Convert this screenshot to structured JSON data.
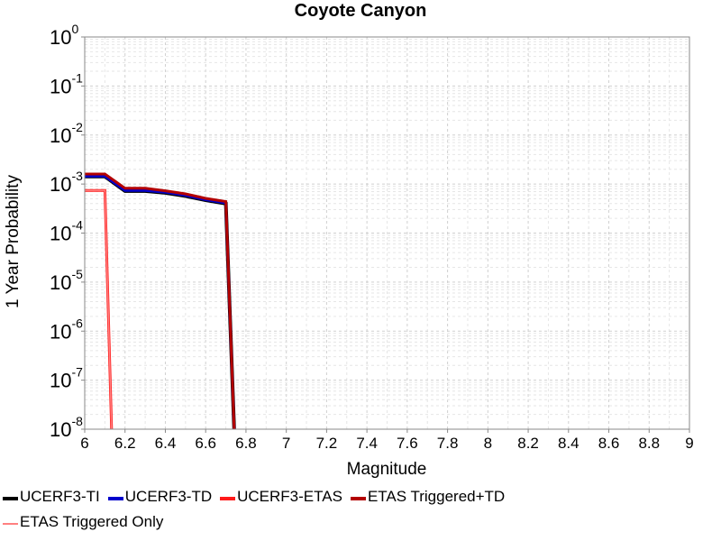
{
  "chart_data": {
    "type": "line",
    "title": "Coyote Canyon",
    "xlabel": "Magnitude",
    "ylabel": "1 Year Probability",
    "xlim": [
      6,
      9
    ],
    "ylim": [
      1e-08,
      1
    ],
    "yscale": "log",
    "xticks": [
      "6",
      "6.2",
      "6.4",
      "6.6",
      "6.8",
      "7",
      "7.2",
      "7.4",
      "7.6",
      "7.8",
      "8",
      "8.2",
      "8.4",
      "8.6",
      "8.8",
      "9"
    ],
    "yticks": [
      {
        "base": "10",
        "exp": "0",
        "value": 1
      },
      {
        "base": "10",
        "exp": "-1",
        "value": 0.1
      },
      {
        "base": "10",
        "exp": "-2",
        "value": 0.01
      },
      {
        "base": "10",
        "exp": "-3",
        "value": 0.001
      },
      {
        "base": "10",
        "exp": "-4",
        "value": 0.0001
      },
      {
        "base": "10",
        "exp": "-5",
        "value": 1e-05
      },
      {
        "base": "10",
        "exp": "-6",
        "value": 1e-06
      },
      {
        "base": "10",
        "exp": "-7",
        "value": 1e-07
      },
      {
        "base": "10",
        "exp": "-8",
        "value": 1e-08
      }
    ],
    "grid": true,
    "series": [
      {
        "name": "UCERF3-TI",
        "color": "#000000",
        "x": [
          6.0,
          6.1,
          6.2,
          6.3,
          6.4,
          6.5,
          6.6,
          6.7,
          6.75
        ],
        "y": [
          0.00142,
          0.00142,
          0.00072,
          0.00072,
          0.00066,
          0.00057,
          0.00047,
          0.0004,
          1e-09
        ]
      },
      {
        "name": "UCERF3-TD",
        "color": "#0000cc",
        "x": [
          6.0,
          6.1,
          6.2,
          6.3,
          6.4,
          6.5,
          6.6,
          6.7,
          6.75
        ],
        "y": [
          0.00145,
          0.00145,
          0.00074,
          0.00074,
          0.00068,
          0.00059,
          0.00048,
          0.00041,
          1e-09
        ]
      },
      {
        "name": "UCERF3-ETAS",
        "color": "#ff1a1a",
        "x": [
          6.0,
          6.1,
          6.14
        ],
        "y": [
          0.00074,
          0.00074,
          1e-09
        ]
      },
      {
        "name": "ETAS Triggered+TD",
        "color": "#b30000",
        "x": [
          6.0,
          6.1,
          6.2,
          6.3,
          6.4,
          6.5,
          6.6,
          6.7,
          6.75
        ],
        "y": [
          0.0016,
          0.0016,
          0.00082,
          0.00082,
          0.00073,
          0.00063,
          0.00051,
          0.00044,
          1e-09
        ]
      },
      {
        "name": "ETAS Triggered Only",
        "color": "#ff8080",
        "x": [
          6.0,
          6.1,
          6.14
        ],
        "y": [
          0.00074,
          0.00074,
          1e-09
        ]
      }
    ]
  }
}
